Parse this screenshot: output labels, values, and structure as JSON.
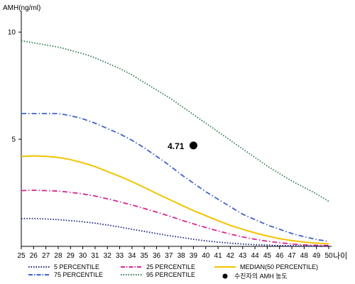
{
  "chart_data": {
    "type": "line",
    "ylabel": "AMH(ng/ml)",
    "xlabel": "나이",
    "x": [
      25,
      26,
      27,
      28,
      29,
      30,
      31,
      32,
      33,
      34,
      35,
      36,
      37,
      38,
      39,
      40,
      41,
      42,
      43,
      44,
      45,
      46,
      47,
      48,
      49,
      50
    ],
    "xlim": [
      25,
      50
    ],
    "ylim": [
      0,
      11
    ],
    "yticks": [
      5,
      10
    ],
    "grid": false,
    "legend_position": "bottom",
    "series": [
      {
        "name": "95 PERCENTILE",
        "color": "#2e7d4f",
        "style": "dotted",
        "values": [
          9.6,
          9.5,
          9.4,
          9.3,
          9.15,
          9.0,
          8.8,
          8.55,
          8.3,
          8.0,
          7.65,
          7.3,
          6.95,
          6.55,
          6.15,
          5.75,
          5.35,
          4.95,
          4.55,
          4.15,
          3.75,
          3.4,
          3.05,
          2.75,
          2.45,
          2.1
        ]
      },
      {
        "name": "75 PERCENTILE",
        "color": "#3f63c9",
        "style": "dashdot",
        "values": [
          6.2,
          6.2,
          6.2,
          6.2,
          6.1,
          5.95,
          5.75,
          5.5,
          5.25,
          4.95,
          4.6,
          4.2,
          3.8,
          3.35,
          2.95,
          2.55,
          2.2,
          1.85,
          1.5,
          1.25,
          1.0,
          0.8,
          0.6,
          0.45,
          0.32,
          0.23
        ]
      },
      {
        "name": "MEDIAN(50 PERCENTILE)",
        "color": "#f2c300",
        "style": "solid",
        "values": [
          4.2,
          4.22,
          4.2,
          4.15,
          4.05,
          3.9,
          3.72,
          3.5,
          3.27,
          3.02,
          2.75,
          2.47,
          2.2,
          1.93,
          1.67,
          1.43,
          1.2,
          0.98,
          0.8,
          0.63,
          0.48,
          0.36,
          0.27,
          0.2,
          0.15,
          0.12
        ]
      },
      {
        "name": "25 PERCENTILE",
        "color": "#d8268f",
        "style": "dashdot",
        "values": [
          2.6,
          2.62,
          2.6,
          2.58,
          2.52,
          2.45,
          2.35,
          2.22,
          2.08,
          1.93,
          1.77,
          1.6,
          1.42,
          1.23,
          1.05,
          0.88,
          0.72,
          0.57,
          0.44,
          0.33,
          0.24,
          0.17,
          0.11,
          0.07,
          0.05,
          0.04
        ]
      },
      {
        "name": "5 PERCENTILE",
        "color": "#1a237e",
        "style": "dotted",
        "values": [
          1.3,
          1.3,
          1.28,
          1.25,
          1.2,
          1.15,
          1.08,
          1.0,
          0.9,
          0.8,
          0.7,
          0.6,
          0.5,
          0.42,
          0.33,
          0.26,
          0.2,
          0.15,
          0.11,
          0.08,
          0.06,
          0.04,
          0.03,
          0.02,
          0.015,
          0.01
        ]
      }
    ],
    "highlight_point": {
      "name": "수진자의 AMH 농도",
      "x": 39,
      "y": 4.71,
      "label": "4.71",
      "color": "#000000"
    }
  },
  "legend": {
    "items": [
      {
        "key": "5 PERCENTILE",
        "label": "5 PERCENTILE",
        "color": "#1a237e",
        "style": "dotted"
      },
      {
        "key": "75 PERCENTILE",
        "label": "75 PERCENTILE",
        "color": "#3f63c9",
        "style": "dashdot"
      },
      {
        "key": "25 PERCENTILE",
        "label": "25 PERCENTILE",
        "color": "#d8268f",
        "style": "dashdot"
      },
      {
        "key": "95 PERCENTILE",
        "label": "95 PERCENTILE",
        "color": "#2e7d4f",
        "style": "dotted"
      },
      {
        "key": "MEDIAN",
        "label": "MEDIAN(50 PERCENTILE)",
        "color": "#f2c300",
        "style": "solid"
      },
      {
        "key": "POINT",
        "label": "수진자의 AMH 농도",
        "color": "#000000",
        "style": "marker"
      }
    ]
  }
}
